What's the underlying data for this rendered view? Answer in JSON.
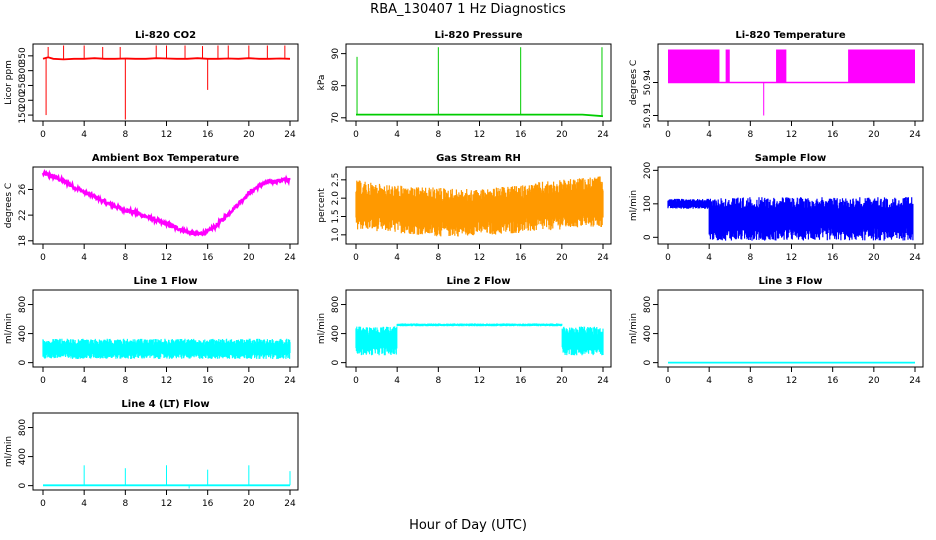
{
  "page": {
    "title": "RBA_130407  1 Hz Diagnostics",
    "xlabel": "Hour of Day (UTC)"
  },
  "chart_data": [
    {
      "id": "co2",
      "type": "line",
      "title": "Li-820 CO2",
      "ylabel": "Licor ppm",
      "xlim": [
        0,
        24
      ],
      "ylim": [
        130,
        390
      ],
      "xticks": [
        "0",
        "4",
        "8",
        "12",
        "16",
        "20",
        "24"
      ],
      "yticks": [
        "150",
        "200",
        "250",
        "300",
        "350"
      ],
      "color": "#ff0000",
      "series": [
        {
          "x": [
            0,
            0.5,
            1,
            2,
            3,
            4,
            5,
            6,
            7,
            8,
            9,
            10,
            11,
            12,
            13,
            14,
            15,
            16,
            17,
            18,
            19,
            20,
            21,
            22,
            23,
            24
          ],
          "y": [
            340,
            345,
            340,
            338,
            340,
            340,
            342,
            340,
            340,
            341,
            340,
            340,
            342,
            341,
            340,
            340,
            342,
            340,
            340,
            341,
            340,
            342,
            340,
            340,
            341,
            340
          ]
        }
      ],
      "spikes": [
        {
          "x": 0.3,
          "y": 150
        },
        {
          "x": 0.5,
          "y": 380
        },
        {
          "x": 2,
          "y": 385
        },
        {
          "x": 4,
          "y": 385
        },
        {
          "x": 5.8,
          "y": 380
        },
        {
          "x": 7.5,
          "y": 380
        },
        {
          "x": 8,
          "y": 135
        },
        {
          "x": 11,
          "y": 385
        },
        {
          "x": 12,
          "y": 385
        },
        {
          "x": 13.8,
          "y": 385
        },
        {
          "x": 15.5,
          "y": 383
        },
        {
          "x": 16,
          "y": 235
        },
        {
          "x": 17,
          "y": 385
        },
        {
          "x": 18,
          "y": 385
        },
        {
          "x": 20,
          "y": 385
        },
        {
          "x": 21.8,
          "y": 385
        },
        {
          "x": 23.5,
          "y": 385
        }
      ]
    },
    {
      "id": "pressure",
      "type": "line",
      "title": "Li-820 Pressure",
      "ylabel": "kPa",
      "xlim": [
        0,
        24
      ],
      "ylim": [
        69,
        93
      ],
      "xticks": [
        "0",
        "4",
        "8",
        "12",
        "16",
        "20",
        "24"
      ],
      "yticks": [
        "70",
        "80",
        "90"
      ],
      "color": "#00cc00",
      "series": [
        {
          "x": [
            0,
            2,
            4,
            6,
            8,
            10,
            12,
            14,
            16,
            18,
            20,
            22,
            24
          ],
          "y": [
            71,
            71,
            71,
            71,
            71,
            71,
            71,
            71,
            71,
            71,
            71,
            71,
            70.5
          ]
        }
      ],
      "spikes": [
        {
          "x": 0.1,
          "y": 89
        },
        {
          "x": 8,
          "y": 92
        },
        {
          "x": 16,
          "y": 92
        },
        {
          "x": 23.9,
          "y": 92
        }
      ]
    },
    {
      "id": "temperature",
      "type": "step",
      "title": "Li-820 Temperature",
      "ylabel": "degrees C",
      "xlim": [
        0,
        24
      ],
      "ylim": [
        50.905,
        50.975
      ],
      "xticks": [
        "0",
        "4",
        "8",
        "12",
        "16",
        "20",
        "24"
      ],
      "yticks": [
        "50.91",
        "50.94"
      ],
      "color": "#ff00ff",
      "band": {
        "low": 50.94,
        "high": 50.97
      },
      "segments": [
        [
          0,
          5
        ],
        [
          5.6,
          6.0
        ],
        [
          10.5,
          11.5
        ],
        [
          17.5,
          24
        ]
      ],
      "spikes": [
        {
          "x": 9.3,
          "y": 50.91
        }
      ]
    },
    {
      "id": "ambient",
      "type": "line",
      "title": "Ambient Box Temperature",
      "ylabel": "degrees C",
      "xlim": [
        0,
        24
      ],
      "ylim": [
        17.5,
        29.5
      ],
      "xticks": [
        "0",
        "4",
        "8",
        "12",
        "16",
        "20",
        "24"
      ],
      "yticks": [
        "18",
        "22",
        "26"
      ],
      "color": "#ff00ff",
      "series": [
        {
          "x": [
            0,
            1,
            2,
            3,
            4,
            5,
            6,
            7,
            8,
            9,
            10,
            11,
            12,
            13,
            14,
            15,
            16,
            17,
            18,
            19,
            20,
            21,
            22,
            23,
            24
          ],
          "y": [
            28.5,
            28,
            27.3,
            26.4,
            25.6,
            24.9,
            24,
            23.4,
            22.8,
            22.4,
            21.8,
            21.2,
            20.6,
            20,
            19.4,
            19,
            19.4,
            20.6,
            22.2,
            23.8,
            25.4,
            26.6,
            27.2,
            27.4,
            27.5
          ]
        }
      ],
      "noise": 0.55
    },
    {
      "id": "rh",
      "type": "noise",
      "title": "Gas Stream RH",
      "ylabel": "percent",
      "xlim": [
        0,
        24
      ],
      "ylim": [
        0.75,
        2.85
      ],
      "xticks": [
        "0",
        "4",
        "8",
        "12",
        "16",
        "20",
        "24"
      ],
      "yticks": [
        "1.0",
        "1.5",
        "2.0",
        "2.5"
      ],
      "color": "#ff9900",
      "low": [
        1.15,
        1.1,
        1.05,
        1.0,
        0.95,
        0.95,
        1.0,
        1.0,
        1.05,
        1.1,
        1.15,
        1.2,
        1.2
      ],
      "high": [
        2.5,
        2.4,
        2.35,
        2.3,
        2.3,
        2.25,
        2.25,
        2.3,
        2.35,
        2.45,
        2.5,
        2.55,
        2.6
      ]
    },
    {
      "id": "sample",
      "type": "noise",
      "title": "Sample Flow",
      "ylabel": "ml/min",
      "xlim": [
        0,
        24
      ],
      "ylim": [
        -20,
        210
      ],
      "xticks": [
        "0",
        "4",
        "8",
        "12",
        "16",
        "20",
        "24"
      ],
      "yticks": [
        "0",
        "100",
        "200"
      ],
      "color": "#0000ff",
      "blocks": [
        {
          "x0": 0,
          "x1": 4,
          "low": 85,
          "high": 115
        },
        {
          "x0": 4,
          "x1": 23.8,
          "low": -10,
          "high": 120
        }
      ]
    },
    {
      "id": "line1",
      "type": "noise",
      "title": "Line 1 Flow",
      "ylabel": "ml/min",
      "xlim": [
        0,
        24
      ],
      "ylim": [
        -60,
        1000
      ],
      "xticks": [
        "0",
        "4",
        "8",
        "12",
        "16",
        "20",
        "24"
      ],
      "yticks": [
        "0",
        "400",
        "800"
      ],
      "color": "#00ffff",
      "blocks": [
        {
          "x0": 0,
          "x1": 24,
          "low": 50,
          "high": 330
        }
      ]
    },
    {
      "id": "line2",
      "type": "noise",
      "title": "Line 2 Flow",
      "ylabel": "ml/min",
      "xlim": [
        0,
        24
      ],
      "ylim": [
        -60,
        1000
      ],
      "xticks": [
        "0",
        "4",
        "8",
        "12",
        "16",
        "20",
        "24"
      ],
      "yticks": [
        "0",
        "400",
        "800"
      ],
      "color": "#00ffff",
      "blocks": [
        {
          "x0": 0,
          "x1": 4,
          "low": 100,
          "high": 500
        },
        {
          "x0": 4,
          "x1": 20,
          "low": 500,
          "high": 540
        },
        {
          "x0": 20,
          "x1": 24,
          "low": 100,
          "high": 500
        }
      ]
    },
    {
      "id": "line3",
      "type": "line",
      "title": "Line 3 Flow",
      "ylabel": "ml/min",
      "xlim": [
        0,
        24
      ],
      "ylim": [
        -60,
        1000
      ],
      "xticks": [
        "0",
        "4",
        "8",
        "12",
        "16",
        "20",
        "24"
      ],
      "yticks": [
        "0",
        "400",
        "800"
      ],
      "color": "#00ffff",
      "series": [
        {
          "x": [
            0,
            24
          ],
          "y": [
            0,
            0
          ]
        }
      ]
    },
    {
      "id": "line4",
      "type": "line",
      "title": "Line 4 (LT) Flow",
      "ylabel": "ml/min",
      "xlim": [
        0,
        24
      ],
      "ylim": [
        -60,
        1000
      ],
      "xticks": [
        "0",
        "4",
        "8",
        "12",
        "16",
        "20",
        "24"
      ],
      "yticks": [
        "0",
        "400",
        "800"
      ],
      "color": "#00ffff",
      "series": [
        {
          "x": [
            0,
            24
          ],
          "y": [
            5,
            5
          ]
        }
      ],
      "spikes": [
        {
          "x": 4,
          "y": 280
        },
        {
          "x": 8,
          "y": 240
        },
        {
          "x": 12,
          "y": 280
        },
        {
          "x": 16,
          "y": 220
        },
        {
          "x": 20,
          "y": 280
        },
        {
          "x": 24,
          "y": 200
        },
        {
          "x": 14.2,
          "y": -40
        }
      ]
    }
  ]
}
